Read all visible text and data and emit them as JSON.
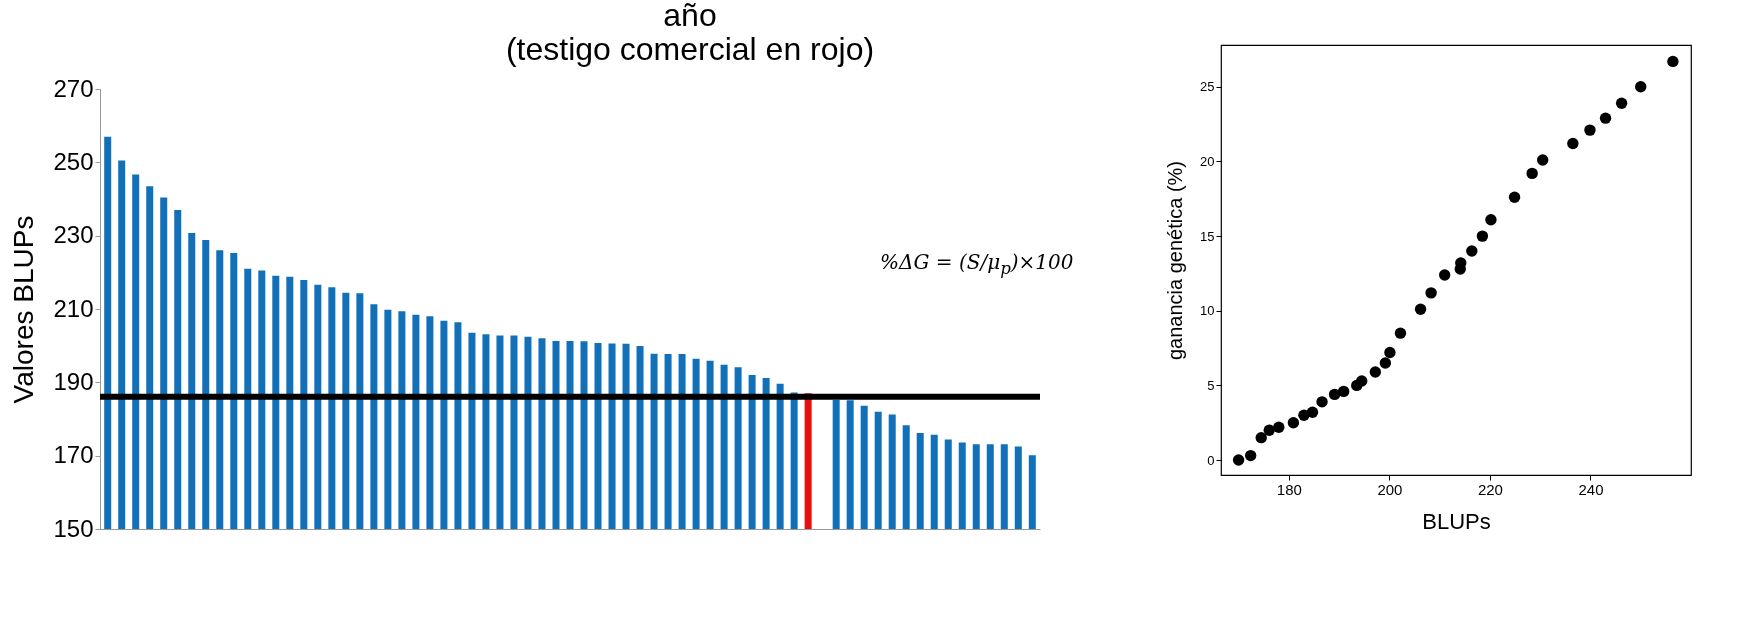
{
  "chart_data": [
    {
      "type": "bar",
      "title": "año\n(testigo comercial en rojo)",
      "ylabel": "Valores BLUPs",
      "categories": [
        null,
        null,
        null,
        null,
        null,
        null,
        null,
        null,
        null,
        null,
        null,
        null,
        null,
        null,
        null,
        null,
        null,
        null,
        null,
        null,
        null,
        null,
        null,
        null,
        null,
        null,
        null,
        null,
        null,
        null,
        null,
        null,
        null,
        null,
        null,
        null,
        null,
        null,
        null,
        null,
        null,
        null,
        null,
        null,
        null,
        null,
        null,
        null,
        null,
        null,
        null,
        null,
        null,
        null,
        null,
        null,
        null,
        null,
        null,
        null,
        null,
        null,
        null,
        null,
        null,
        null,
        null
      ],
      "values": [
        257.0,
        250.5,
        246.7,
        243.5,
        240.4,
        237.0,
        230.7,
        228.8,
        226.0,
        225.3,
        221.0,
        220.5,
        219.1,
        218.8,
        217.9,
        216.6,
        215.9,
        214.4,
        214.3,
        211.3,
        209.8,
        209.4,
        208.4,
        208.0,
        206.8,
        206.4,
        203.5,
        203.1,
        202.8,
        202.8,
        202.4,
        202.0,
        201.3,
        201.3,
        201.2,
        200.7,
        200.6,
        200.5,
        199.9,
        197.8,
        197.7,
        197.7,
        196.4,
        195.9,
        194.8,
        194.1,
        192.0,
        191.2,
        189.6,
        187.2,
        187.0,
        null,
        185.2,
        185.1,
        183.6,
        182.0,
        181.2,
        178.3,
        176.2,
        175.7,
        174.4,
        173.6,
        173.1,
        173.1,
        173.1,
        172.5,
        170.1
      ],
      "colors": [
        "#1170b8",
        "#1170b8",
        "#1170b8",
        "#1170b8",
        "#1170b8",
        "#1170b8",
        "#1170b8",
        "#1170b8",
        "#1170b8",
        "#1170b8",
        "#1170b8",
        "#1170b8",
        "#1170b8",
        "#1170b8",
        "#1170b8",
        "#1170b8",
        "#1170b8",
        "#1170b8",
        "#1170b8",
        "#1170b8",
        "#1170b8",
        "#1170b8",
        "#1170b8",
        "#1170b8",
        "#1170b8",
        "#1170b8",
        "#1170b8",
        "#1170b8",
        "#1170b8",
        "#1170b8",
        "#1170b8",
        "#1170b8",
        "#1170b8",
        "#1170b8",
        "#1170b8",
        "#1170b8",
        "#1170b8",
        "#1170b8",
        "#1170b8",
        "#1170b8",
        "#1170b8",
        "#1170b8",
        "#1170b8",
        "#1170b8",
        "#1170b8",
        "#1170b8",
        "#1170b8",
        "#1170b8",
        "#1170b8",
        "#1170b8",
        "#e8100e",
        "#1170b8",
        "#1170b8",
        "#1170b8",
        "#1170b8",
        "#1170b8",
        "#1170b8",
        "#1170b8",
        "#1170b8",
        "#1170b8",
        "#1170b8",
        "#1170b8",
        "#1170b8",
        "#1170b8",
        "#1170b8",
        "#1170b8",
        "#1170b8"
      ],
      "ylim": [
        150,
        270
      ],
      "yticks": [
        150,
        170,
        190,
        210,
        230,
        250,
        270
      ],
      "ref_lines": [
        {
          "axis": "y",
          "value": 186.1,
          "color": "#000000"
        }
      ],
      "annotations": [
        "%ΔG = (S/μ$_{p}$)×100"
      ]
    },
    {
      "type": "scatter",
      "xlabel": "BLUPs",
      "ylabel": "ganancia genética (%)",
      "color": "#000000",
      "marker": "circle",
      "x": [
        170.0,
        172.4,
        174.5,
        176.1,
        178.0,
        180.9,
        183.0,
        184.7,
        186.6,
        189.1,
        190.9,
        193.5,
        194.5,
        197.2,
        199.2,
        200.1,
        202.2,
        206.2,
        208.3,
        211.0,
        214.1,
        214.2,
        216.4,
        218.5,
        220.2,
        224.9,
        228.4,
        230.5,
        236.5,
        239.9,
        243.0,
        246.2,
        250.0,
        256.4
      ],
      "values": [
        0,
        0.3,
        1.5,
        2.0,
        2.2,
        2.5,
        3.0,
        3.2,
        3.9,
        4.4,
        4.6,
        5.0,
        5.3,
        5.9,
        6.5,
        7.2,
        8.5,
        10.1,
        11.2,
        12.4,
        12.8,
        13.2,
        14.0,
        15.0,
        16.1,
        17.6,
        19.2,
        20.1,
        21.2,
        22.1,
        22.9,
        23.9,
        25.0,
        26.7
      ],
      "xlim": [
        166.5,
        260
      ],
      "ylim": [
        -1,
        27.8
      ],
      "xticks": [
        180,
        200,
        220,
        240
      ],
      "yticks": [
        0,
        5,
        10,
        15,
        20,
        25
      ]
    }
  ]
}
